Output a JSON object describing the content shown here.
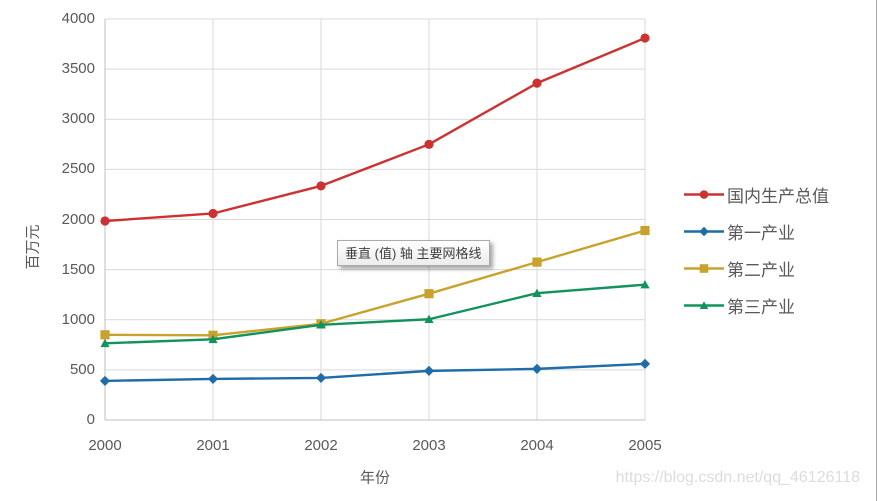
{
  "chart_data": {
    "type": "line",
    "title": "",
    "xlabel": "年份",
    "ylabel": "百万元",
    "categories": [
      "2000",
      "2001",
      "2002",
      "2003",
      "2004",
      "2005"
    ],
    "ylim": [
      0,
      4000
    ],
    "yticks": [
      0,
      500,
      1000,
      1500,
      2000,
      2500,
      3000,
      3500,
      4000
    ],
    "grid": true,
    "legend_position": "right",
    "series": [
      {
        "name": "国内生产总值",
        "color": "#cc3232",
        "marker": "circle",
        "values": [
          1985,
          2060,
          2335,
          2750,
          3360,
          3810
        ]
      },
      {
        "name": "第一产业",
        "color": "#1e6ca8",
        "marker": "diamond",
        "values": [
          390,
          410,
          420,
          490,
          510,
          560
        ]
      },
      {
        "name": "第二产业",
        "color": "#c9a22b",
        "marker": "square",
        "values": [
          850,
          845,
          960,
          1260,
          1575,
          1890
        ]
      },
      {
        "name": "第三产业",
        "color": "#12925c",
        "marker": "triangle",
        "values": [
          765,
          805,
          950,
          1005,
          1265,
          1350
        ]
      }
    ]
  },
  "tooltip": {
    "text": "垂直 (值) 轴 主要网格线"
  },
  "watermark": {
    "text": "https://blog.csdn.net/qq_46126118"
  },
  "colors": {
    "gridline": "#d9d9d9",
    "axis_line": "#bfbfbf",
    "label_text": "#595959",
    "tooltip_border": "#ababab",
    "watermark": "#dcdcdc",
    "window_border": "#a6a6a6"
  }
}
